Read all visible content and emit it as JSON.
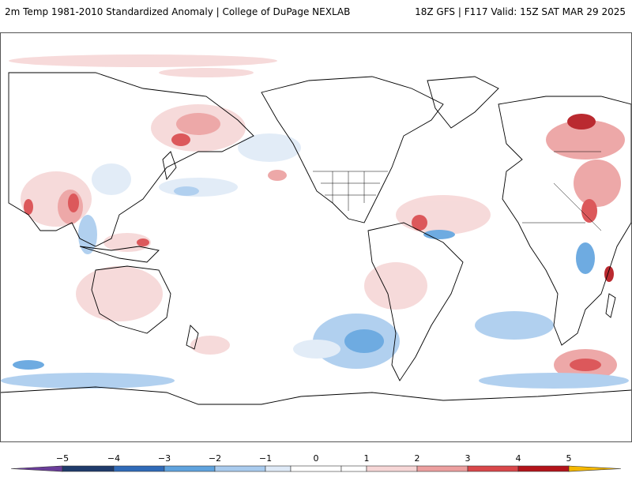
{
  "header": {
    "title_left": "2m Temp 1981-2010 Standardized Anomaly | College of DuPage NEXLAB",
    "title_right": "18Z GFS | F117 Valid: 15Z SAT MAR 29 2025"
  },
  "colorbar": {
    "ticks": [
      "−5",
      "−4",
      "−3",
      "−2",
      "−1",
      "0",
      "1",
      "2",
      "3",
      "4",
      "5"
    ],
    "bins": [
      {
        "value": -5,
        "color": "#6a3d9a"
      },
      {
        "value": -4,
        "color": "#1f3b6b"
      },
      {
        "value": -3,
        "color": "#2f6ab8"
      },
      {
        "value": -2,
        "color": "#5fa3de"
      },
      {
        "value": -1,
        "color": "#a9cbee"
      },
      {
        "value": 0,
        "color": "#dfeaf7"
      },
      {
        "value": 0.5,
        "color": "#ffffff"
      },
      {
        "value": 1,
        "color": "#f6d6d6"
      },
      {
        "value": 2,
        "color": "#ec9f9f"
      },
      {
        "value": 3,
        "color": "#d9474a"
      },
      {
        "value": 4,
        "color": "#b3131a"
      },
      {
        "value": 5,
        "color": "#7a0a0f"
      },
      {
        "value": 6,
        "color": "#f5b800"
      }
    ]
  },
  "map": {
    "type": "global standardized 2m temperature anomaly",
    "projection": "equirectangular, centered on Pacific",
    "land_outline_color": "#000000",
    "border_color": "#000000"
  }
}
